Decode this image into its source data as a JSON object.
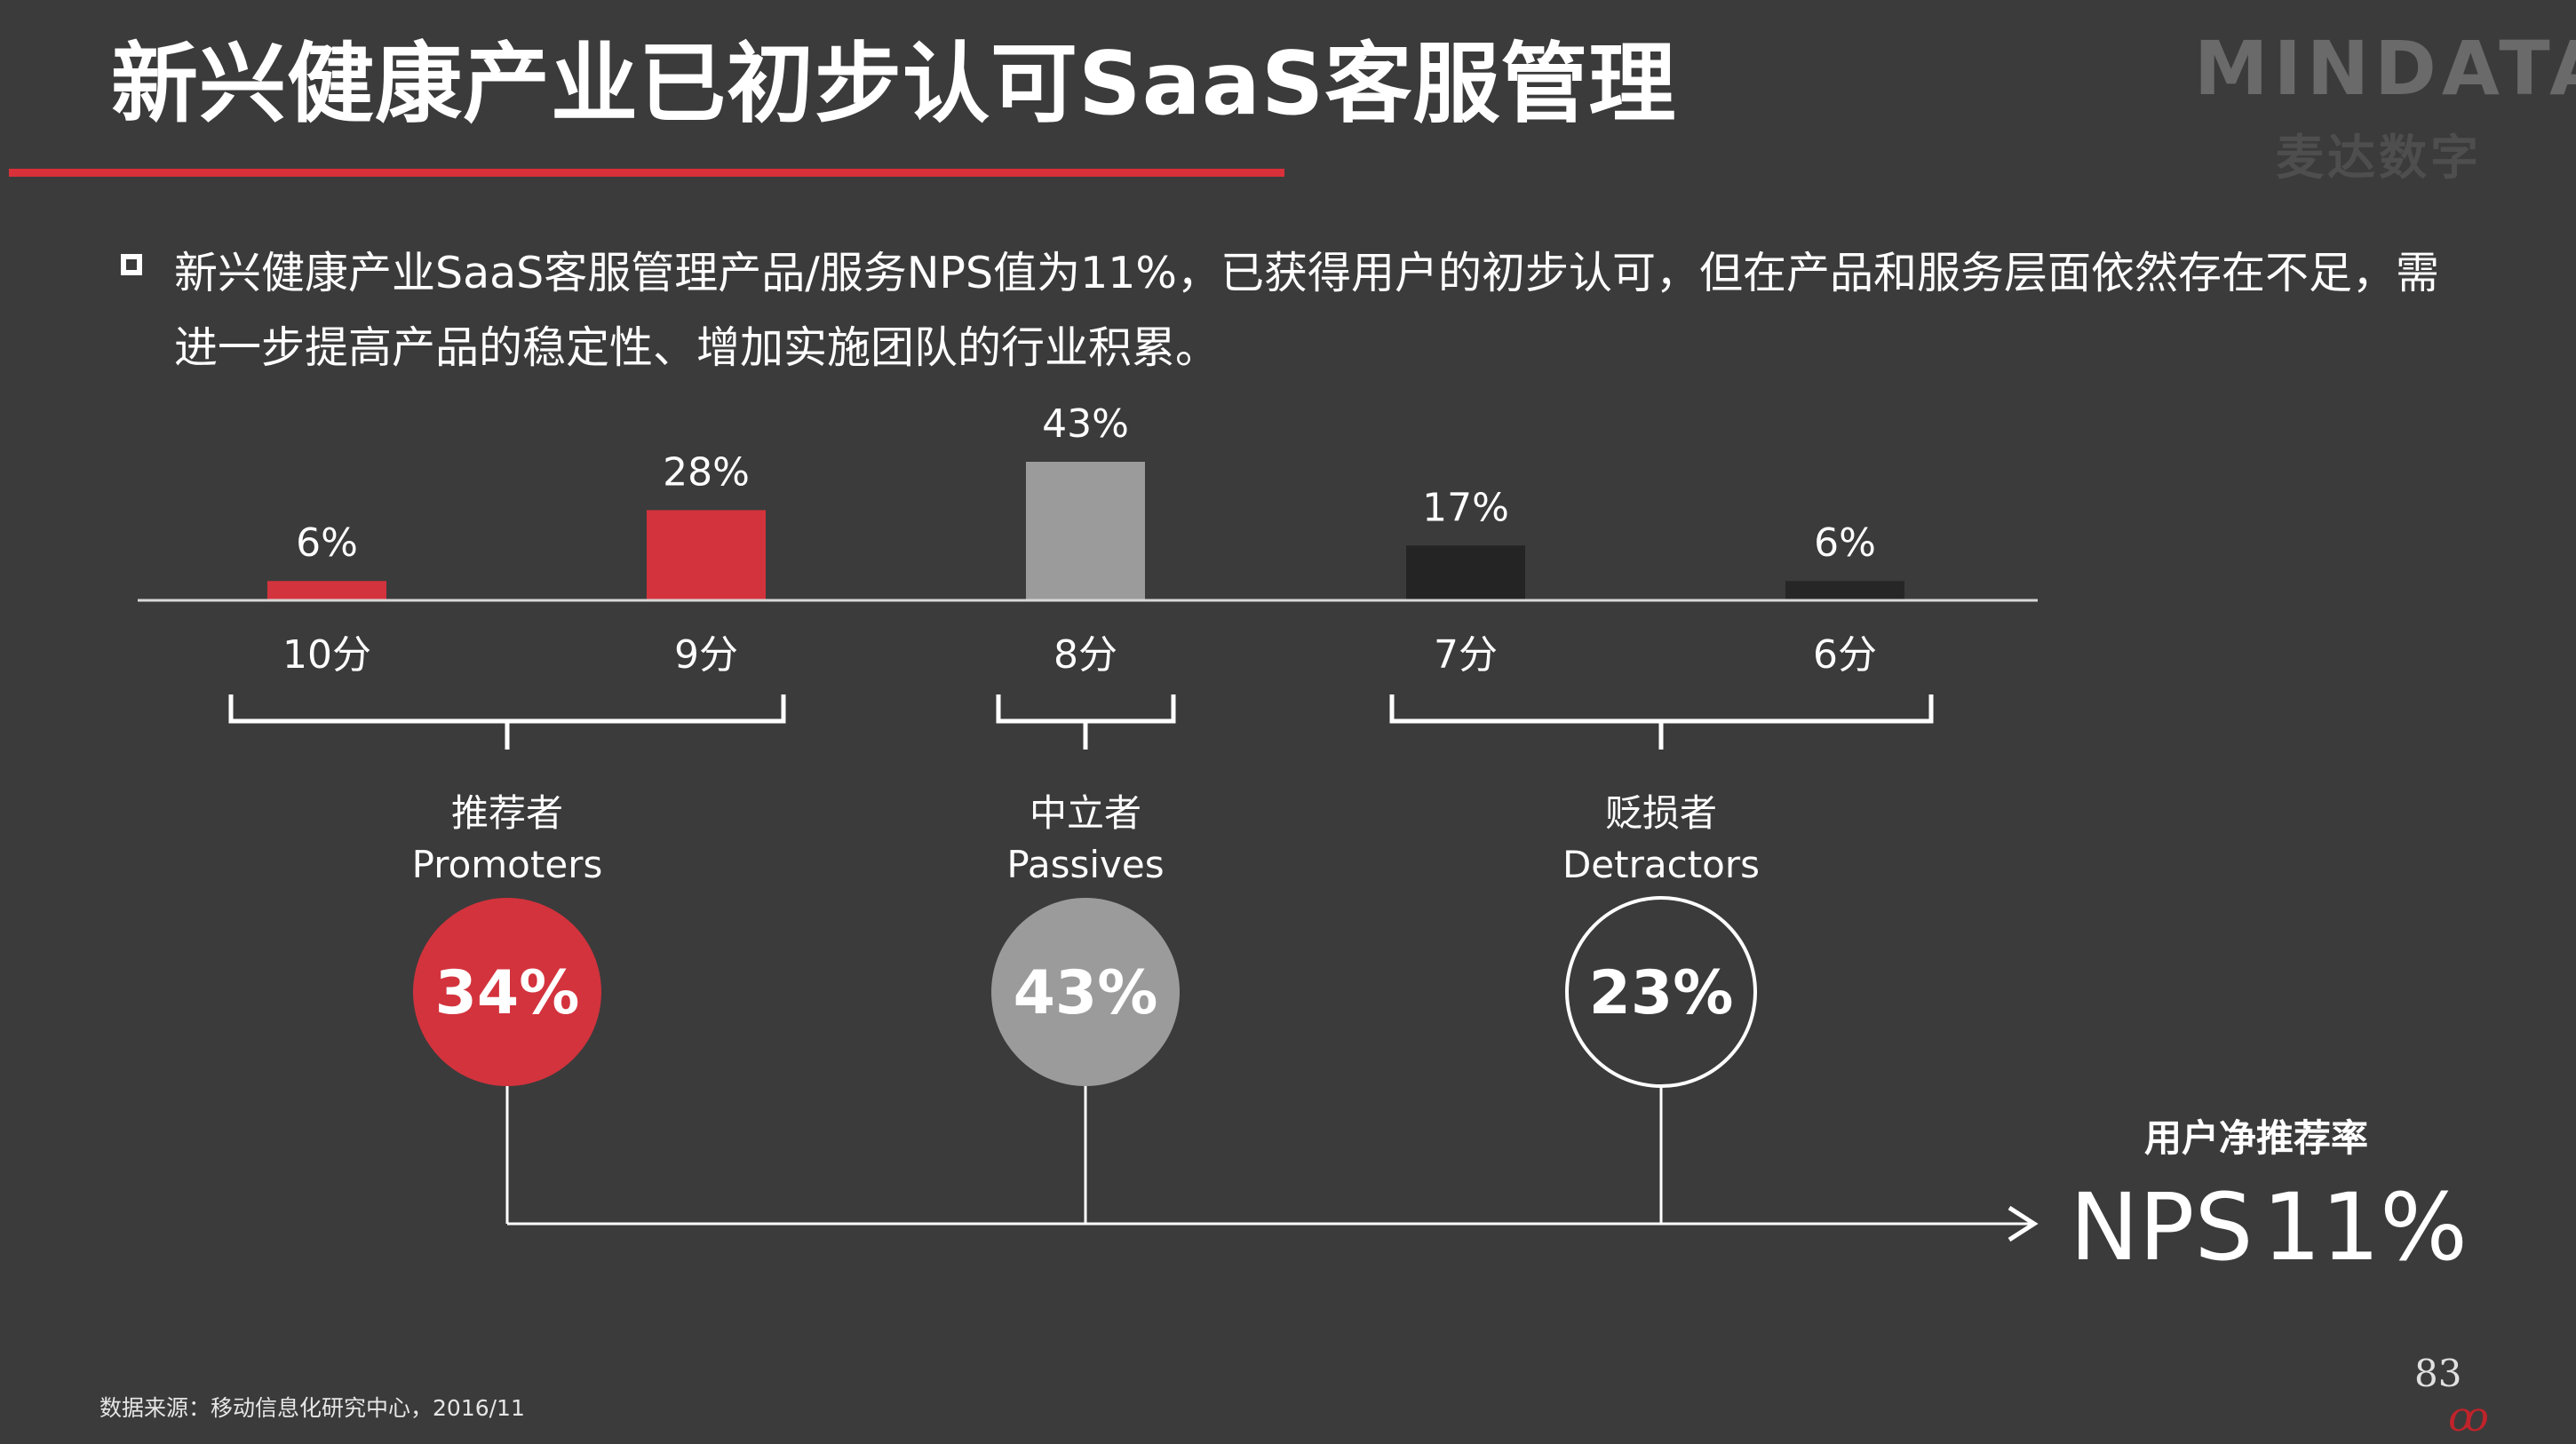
{
  "header": {
    "title": "新兴健康产业已初步认可SaaS客服管理",
    "logo_text": "MINDATA",
    "logo_subtitle": "麦达数字"
  },
  "intro": {
    "text": "新兴健康产业SaaS客服管理产品/服务NPS值为11%，已获得用户的初步认可，但在产品和服务层面依然存在不足，需进一步提高产品的稳定性、增加实施团队的行业积累。"
  },
  "chart_data": {
    "type": "bar",
    "categories": [
      "10分",
      "9分",
      "8分",
      "7分",
      "6分"
    ],
    "values": [
      6,
      28,
      43,
      17,
      6
    ],
    "value_labels": [
      "6%",
      "28%",
      "43%",
      "17%",
      "6%"
    ],
    "bar_colors": [
      "#d3333d",
      "#d3333d",
      "#9b9b9b",
      "#242424",
      "#262626"
    ],
    "ylim": [
      0,
      43
    ],
    "groups": [
      {
        "name_cn": "推荐者",
        "name_en": "Promoters",
        "share": "34%",
        "fill": "#d3333d",
        "stroke": "none"
      },
      {
        "name_cn": "中立者",
        "name_en": "Passives",
        "share": "43%",
        "fill": "#9b9b9b",
        "stroke": "none"
      },
      {
        "name_cn": "贬损者",
        "name_en": "Detractors",
        "share": "23%",
        "fill": "none",
        "stroke": "#ffffff"
      }
    ],
    "nps": {
      "label": "用户净推荐率",
      "name": "NPS",
      "value": "11%"
    }
  },
  "footer": {
    "source": "数据来源：移动信息化研究中心，2016/11",
    "page_number": "83"
  }
}
